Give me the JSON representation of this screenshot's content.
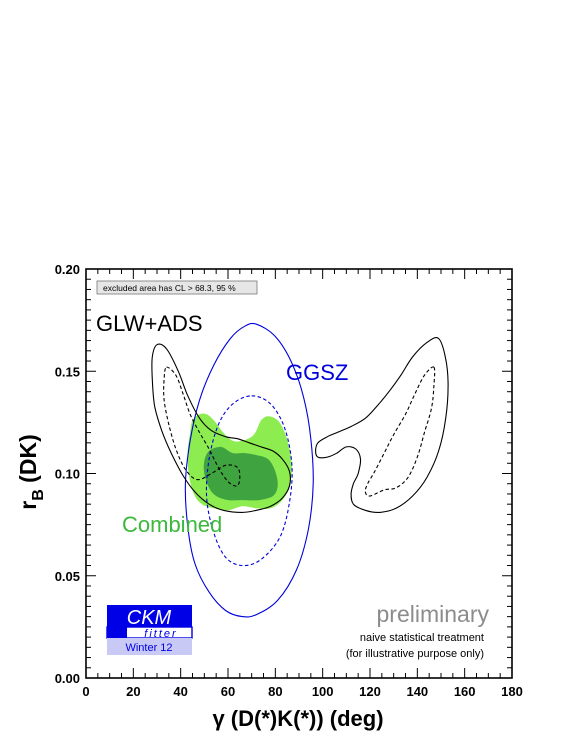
{
  "chart_data": {
    "type": "contour",
    "title": "",
    "xlabel": "γ  (D(*)K(*)) (deg)",
    "ylabel": "r",
    "ylabel_sub": "B",
    "ylabel_tail": " (DK)",
    "xlim": [
      0,
      180
    ],
    "ylim": [
      0.0,
      0.2
    ],
    "x_ticks": [
      0,
      20,
      40,
      60,
      80,
      100,
      120,
      140,
      160,
      180
    ],
    "y_ticks": [
      0.0,
      0.05,
      0.1,
      0.15,
      0.2
    ],
    "y_tick_labels": [
      "0.00",
      "0.05",
      "0.10",
      "0.15",
      "0.20"
    ],
    "grid": false,
    "legend_box": "excluded area has CL  > 68.3, 95 %",
    "annotations": {
      "glw": "GLW+ADS",
      "ggsz": "GGSZ",
      "combined": "Combined",
      "preliminary": "preliminary",
      "note1": "naive statistical treatment",
      "note2": "(for illustrative purpose only)"
    },
    "logo": {
      "line1": "CKM",
      "line2": "fitter",
      "line3": "Winter 12"
    },
    "colors": {
      "ggsz": "#0000dd",
      "glw": "#000000",
      "combined_68": "#3fa33f",
      "combined_95": "#8cec50",
      "combined_label": "#3cb83c",
      "preliminary": "#8c8c8c",
      "logo_blue": "#0000e6",
      "logo_light": "#c9c9f5"
    },
    "series": [
      {
        "name": "GGSZ",
        "style": "solid",
        "cl": "95%",
        "points": [
          [
            72,
            0.173
          ],
          [
            80,
            0.167
          ],
          [
            87,
            0.154
          ],
          [
            92,
            0.137
          ],
          [
            95,
            0.117
          ],
          [
            96,
            0.095
          ],
          [
            94,
            0.073
          ],
          [
            89,
            0.053
          ],
          [
            81,
            0.038
          ],
          [
            72,
            0.031
          ],
          [
            66,
            0.03
          ],
          [
            59,
            0.033
          ],
          [
            52,
            0.042
          ],
          [
            46,
            0.056
          ],
          [
            43,
            0.074
          ],
          [
            42,
            0.095
          ],
          [
            44,
            0.116
          ],
          [
            48,
            0.136
          ],
          [
            54,
            0.153
          ],
          [
            61,
            0.166
          ],
          [
            67,
            0.172
          ]
        ]
      },
      {
        "name": "GGSZ",
        "style": "dashed",
        "cl": "68%",
        "points": [
          [
            70,
            0.138
          ],
          [
            78,
            0.134
          ],
          [
            84,
            0.122
          ],
          [
            87,
            0.104
          ],
          [
            86,
            0.086
          ],
          [
            82,
            0.069
          ],
          [
            74,
            0.058
          ],
          [
            66,
            0.055
          ],
          [
            59,
            0.059
          ],
          [
            54,
            0.071
          ],
          [
            51,
            0.088
          ],
          [
            52,
            0.107
          ],
          [
            56,
            0.124
          ],
          [
            62,
            0.134
          ]
        ]
      },
      {
        "name": "GLW+ADS",
        "style": "solid",
        "cl": "95%",
        "points": [
          [
            30,
            0.163
          ],
          [
            34,
            0.161
          ],
          [
            39,
            0.15
          ],
          [
            43,
            0.138
          ],
          [
            48,
            0.127
          ],
          [
            53,
            0.121
          ],
          [
            59,
            0.118
          ],
          [
            64,
            0.117
          ],
          [
            69,
            0.115
          ],
          [
            74,
            0.113
          ],
          [
            79,
            0.111
          ],
          [
            83,
            0.107
          ],
          [
            86,
            0.101
          ],
          [
            86,
            0.094
          ],
          [
            83,
            0.088
          ],
          [
            78,
            0.084
          ],
          [
            72,
            0.082
          ],
          [
            66,
            0.081
          ],
          [
            58,
            0.082
          ],
          [
            52,
            0.085
          ],
          [
            46,
            0.091
          ],
          [
            41,
            0.099
          ],
          [
            36,
            0.11
          ],
          [
            32,
            0.121
          ],
          [
            29,
            0.133
          ],
          [
            28,
            0.146
          ],
          [
            28,
            0.157
          ]
        ]
      },
      {
        "name": "GLW+ADS",
        "style": "solid",
        "cl": "95%",
        "points": [
          [
            149,
            0.166
          ],
          [
            144,
            0.164
          ],
          [
            138,
            0.157
          ],
          [
            133,
            0.148
          ],
          [
            128,
            0.14
          ],
          [
            123,
            0.133
          ],
          [
            118,
            0.127
          ],
          [
            112,
            0.123
          ],
          [
            106,
            0.12
          ],
          [
            102,
            0.118
          ],
          [
            98,
            0.115
          ],
          [
            97,
            0.111
          ],
          [
            98,
            0.108
          ],
          [
            102,
            0.108
          ],
          [
            106,
            0.11
          ],
          [
            110,
            0.113
          ],
          [
            114,
            0.112
          ],
          [
            116,
            0.107
          ],
          [
            115,
            0.1
          ],
          [
            113,
            0.095
          ],
          [
            112,
            0.09
          ],
          [
            113,
            0.085
          ],
          [
            118,
            0.082
          ],
          [
            124,
            0.081
          ],
          [
            131,
            0.083
          ],
          [
            138,
            0.089
          ],
          [
            144,
            0.098
          ],
          [
            149,
            0.111
          ],
          [
            152,
            0.127
          ],
          [
            153,
            0.143
          ],
          [
            152,
            0.156
          ]
        ]
      },
      {
        "name": "GLW+ADS",
        "style": "dashed",
        "cl": "68%",
        "points": [
          [
            34,
            0.152
          ],
          [
            38,
            0.148
          ],
          [
            41,
            0.139
          ],
          [
            44,
            0.129
          ],
          [
            48,
            0.12
          ],
          [
            52,
            0.112
          ],
          [
            55,
            0.105
          ],
          [
            58,
            0.099
          ],
          [
            61,
            0.095
          ],
          [
            64,
            0.094
          ],
          [
            65,
            0.098
          ],
          [
            64,
            0.103
          ],
          [
            59,
            0.104
          ],
          [
            53,
            0.1
          ],
          [
            47,
            0.097
          ],
          [
            42,
            0.102
          ],
          [
            38,
            0.112
          ],
          [
            35,
            0.124
          ],
          [
            33,
            0.136
          ],
          [
            33,
            0.146
          ]
        ]
      },
      {
        "name": "GLW+ADS",
        "style": "dashed",
        "cl": "68%",
        "points": [
          [
            147,
            0.152
          ],
          [
            143,
            0.148
          ],
          [
            139,
            0.139
          ],
          [
            135,
            0.129
          ],
          [
            130,
            0.119
          ],
          [
            126,
            0.11
          ],
          [
            122,
            0.101
          ],
          [
            119,
            0.095
          ],
          [
            118,
            0.091
          ],
          [
            120,
            0.089
          ],
          [
            126,
            0.092
          ],
          [
            131,
            0.093
          ],
          [
            136,
            0.098
          ],
          [
            140,
            0.108
          ],
          [
            143,
            0.12
          ],
          [
            146,
            0.132
          ],
          [
            147,
            0.143
          ]
        ]
      },
      {
        "name": "Combined",
        "style": "filled",
        "cl": "95%",
        "points": [
          [
            48,
            0.129
          ],
          [
            51,
            0.129
          ],
          [
            54,
            0.126
          ],
          [
            58,
            0.12
          ],
          [
            62,
            0.116
          ],
          [
            66,
            0.116
          ],
          [
            70,
            0.118
          ],
          [
            72,
            0.121
          ],
          [
            74,
            0.126
          ],
          [
            77,
            0.128
          ],
          [
            81,
            0.126
          ],
          [
            84,
            0.12
          ],
          [
            86,
            0.112
          ],
          [
            87,
            0.103
          ],
          [
            86,
            0.094
          ],
          [
            83,
            0.087
          ],
          [
            78,
            0.083
          ],
          [
            72,
            0.083
          ],
          [
            66,
            0.084
          ],
          [
            60,
            0.082
          ],
          [
            54,
            0.083
          ],
          [
            49,
            0.085
          ],
          [
            46,
            0.089
          ],
          [
            44,
            0.096
          ],
          [
            43,
            0.104
          ],
          [
            43,
            0.112
          ],
          [
            44,
            0.12
          ],
          [
            45,
            0.126
          ]
        ]
      },
      {
        "name": "Combined",
        "style": "filled",
        "cl": "68%",
        "points": [
          [
            52,
            0.111
          ],
          [
            57,
            0.113
          ],
          [
            62,
            0.11
          ],
          [
            67,
            0.11
          ],
          [
            72,
            0.109
          ],
          [
            77,
            0.107
          ],
          [
            80,
            0.101
          ],
          [
            81,
            0.094
          ],
          [
            79,
            0.089
          ],
          [
            73,
            0.087
          ],
          [
            66,
            0.087
          ],
          [
            60,
            0.087
          ],
          [
            55,
            0.089
          ],
          [
            52,
            0.093
          ],
          [
            50,
            0.1
          ],
          [
            50,
            0.106
          ]
        ]
      }
    ]
  }
}
